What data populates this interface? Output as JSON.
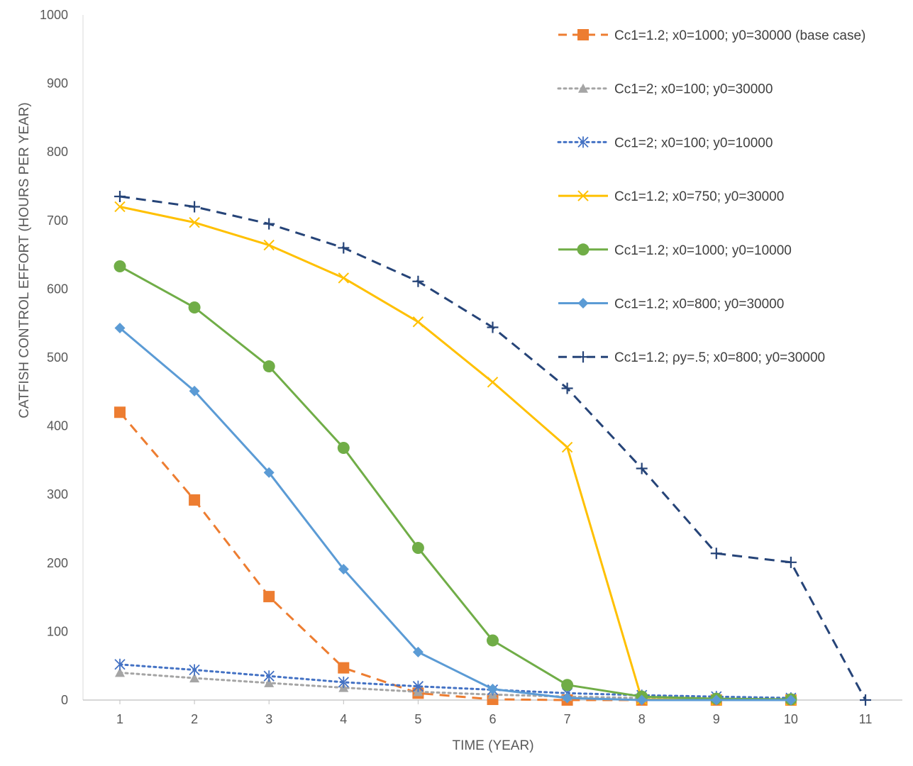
{
  "chart_data": {
    "type": "line",
    "title": "",
    "xlabel": "TIME (YEAR)",
    "ylabel": "CATFISH CONTROL EFFORT (HOURS PER YEAR)",
    "categories": [
      "1",
      "2",
      "3",
      "4",
      "5",
      "6",
      "7",
      "8",
      "9",
      "10",
      "11"
    ],
    "x": [
      1,
      2,
      3,
      4,
      5,
      6,
      7,
      8,
      9,
      10,
      11
    ],
    "ylim": [
      0,
      1000
    ],
    "yticks": [
      "0",
      "100",
      "200",
      "300",
      "400",
      "500",
      "600",
      "700",
      "800",
      "900",
      "1000"
    ],
    "grid": false,
    "legend_position": "top-right",
    "series": [
      {
        "name": "Cc1=1.2; x0=1000; y0=30000 (base case)",
        "color": "#ed7d31",
        "dash": "dashed",
        "marker": "square",
        "values": [
          420,
          292,
          151,
          47,
          10,
          1,
          0,
          0,
          0,
          0,
          null
        ]
      },
      {
        "name": "Cc1=2; x0=100; y0=30000",
        "color": "#a5a5a5",
        "dash": "dotted",
        "marker": "triangle",
        "values": [
          40,
          32,
          25,
          18,
          12,
          8,
          5,
          3,
          2,
          1,
          null
        ]
      },
      {
        "name": "Cc1=2; x0=100; y0=10000",
        "color": "#4472c4",
        "dash": "dotted",
        "marker": "asterisk",
        "values": [
          52,
          44,
          35,
          26,
          20,
          15,
          10,
          7,
          5,
          3,
          null
        ]
      },
      {
        "name": "Cc1=1.2; x0=750; y0=30000",
        "color": "#ffc000",
        "dash": "solid",
        "marker": "x",
        "values": [
          720,
          697,
          664,
          616,
          552,
          464,
          369,
          1,
          0,
          0,
          null
        ]
      },
      {
        "name": "Cc1=1.2; x0=1000; y0=10000",
        "color": "#70ad47",
        "dash": "solid",
        "marker": "circle",
        "values": [
          633,
          573,
          487,
          368,
          222,
          87,
          22,
          5,
          2,
          1,
          null
        ]
      },
      {
        "name": "Cc1=1.2; x0=800; y0=30000",
        "color": "#5b9bd5",
        "dash": "solid",
        "marker": "diamond",
        "values": [
          543,
          451,
          332,
          191,
          70,
          16,
          3,
          0,
          0,
          0,
          null
        ]
      },
      {
        "name": "Cc1=1.2; ρy=.5; x0=800; y0=30000",
        "color": "#264478",
        "dash": "dashed",
        "marker": "plus",
        "values": [
          735,
          720,
          695,
          660,
          611,
          544,
          455,
          338,
          214,
          201,
          0
        ]
      }
    ]
  }
}
